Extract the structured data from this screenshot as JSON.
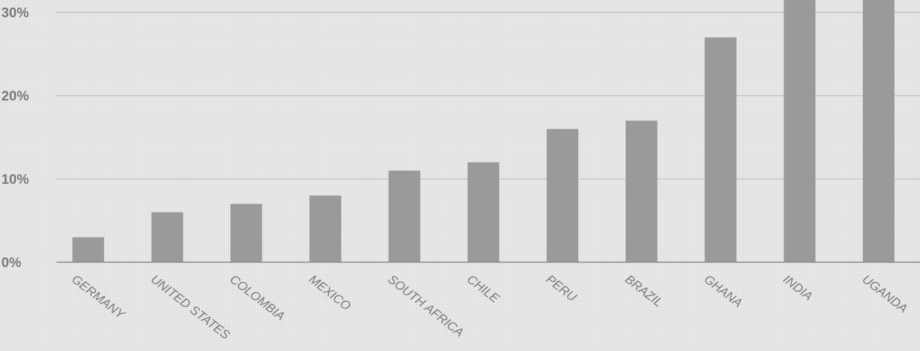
{
  "chart_data": {
    "type": "bar",
    "title": "",
    "xlabel": "",
    "ylabel": "",
    "categories": [
      "GERMANY",
      "UNITED STATES",
      "COLOMBIA",
      "MEXICO",
      "SOUTH AFRICA",
      "CHILE",
      "PERU",
      "BRAZIL",
      "GHANA",
      "INDIA",
      "UGANDA"
    ],
    "values": [
      3,
      6,
      7,
      8,
      11,
      12,
      16,
      17,
      27,
      33,
      33
    ],
    "y_ticks": [
      "0%",
      "10%",
      "20%",
      "30%"
    ],
    "y_tick_values": [
      0,
      10,
      20,
      30
    ],
    "ylim": [
      0,
      31.5
    ],
    "grid": true,
    "legend": "none",
    "colors": {
      "bar": "#9a9a9a",
      "grid": "#b4b4b4",
      "text": "#7a7a7a"
    }
  }
}
